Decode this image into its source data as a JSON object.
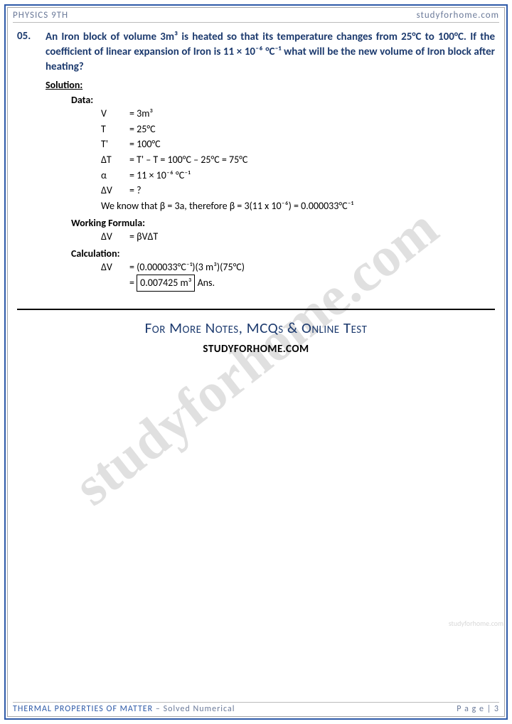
{
  "header": {
    "left": "PHYSICS 9TH",
    "right": "studyforhome.com"
  },
  "question": {
    "number": "05.",
    "text": "An Iron block of volume 3m³ is heated so that its temperature changes from 25°C to 100°C. If the coefficient of linear expansion of Iron is 11 × 10⁻⁶ °C⁻¹ what will be the new volume of Iron block after heating?"
  },
  "labels": {
    "solution": "Solution:",
    "data": "Data:",
    "working_formula": "Working Formula:",
    "calculation": "Calculation:",
    "ans": "Ans."
  },
  "data_rows": [
    {
      "sym": "V",
      "val": "= 3m³"
    },
    {
      "sym": "T",
      "val": "= 25°C"
    },
    {
      "sym": "T'",
      "val": "= 100°C"
    },
    {
      "sym": "ΔT",
      "val": "= T' – T = 100°C – 25°C = 75°C"
    },
    {
      "sym": "α",
      "val": "=  11 × 10⁻⁶ °C⁻¹"
    },
    {
      "sym": "ΔV",
      "val": "= ?"
    }
  ],
  "beta_note": "We know that β = 3a, therefore β = 3(11 x 10⁻⁶) = 0.000033°C⁻¹",
  "formula": {
    "sym": "ΔV",
    "val": "= βVΔT"
  },
  "calc_line1": {
    "sym": "ΔV",
    "val": "= (0.000033°C⁻¹)(3 m³)(75°C)"
  },
  "calc_eq": "=",
  "calc_answer": "0.007425 m³",
  "promo": {
    "line1": "For More Notes, MCQs & Online Test",
    "line2": "STUDYFORHOME.COM"
  },
  "footer": {
    "chapter": "THERMAL PROPERTIES OF MATTER",
    "subtitle": " – Solved Numerical",
    "page_label": "P a g e ",
    "page_num": "| 3"
  },
  "watermark": "studyforhome.com",
  "side_watermark": "studyforhome.com",
  "colors": {
    "border": "#2e5aa8",
    "heading": "#1c3a6e",
    "muted": "#6b7a99",
    "watermark": "#c8c8c8"
  }
}
